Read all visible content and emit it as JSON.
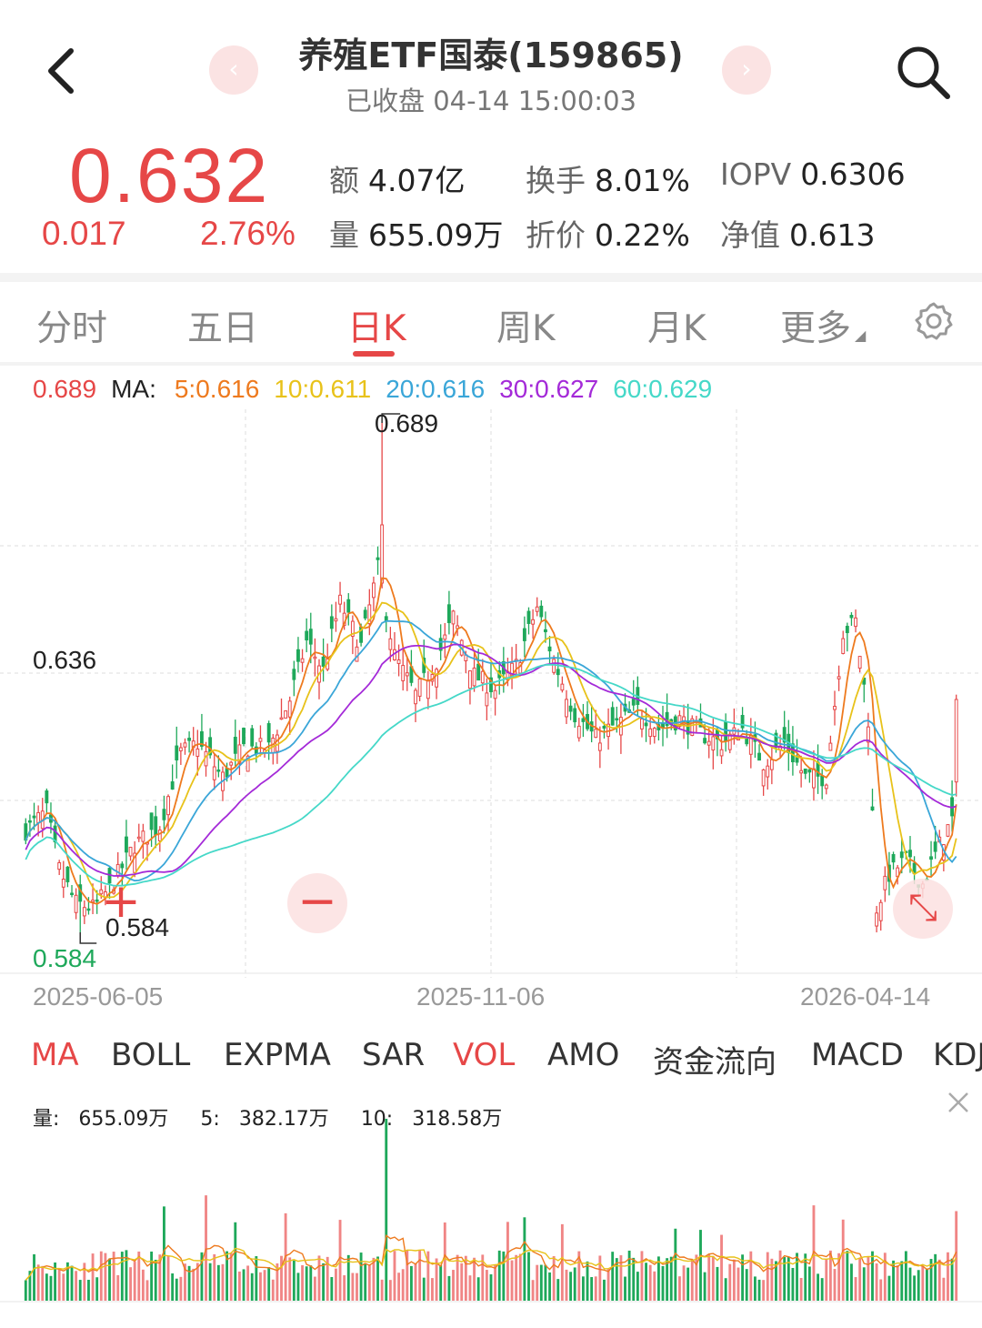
{
  "header": {
    "title": "养殖ETF国泰(159865)",
    "status": "已收盘 04-14 15:00:03",
    "prev_glyph": "‹",
    "next_glyph": "›"
  },
  "quote": {
    "price": "0.632",
    "change": "0.017",
    "change_pct": "2.76%",
    "color": "#e64747",
    "stats": [
      {
        "label": "额",
        "value": "4.07亿"
      },
      {
        "label": "换手",
        "value": "8.01%"
      },
      {
        "label": "IOPV",
        "value": "0.6306"
      },
      {
        "label": "量",
        "value": "655.09万"
      },
      {
        "label": "折价",
        "value": "0.22%"
      },
      {
        "label": "净值",
        "value": "0.613"
      }
    ]
  },
  "tabs": [
    {
      "label": "分时",
      "active": false
    },
    {
      "label": "五日",
      "active": false
    },
    {
      "label": "日K",
      "active": true
    },
    {
      "label": "周K",
      "active": false
    },
    {
      "label": "月K",
      "active": false
    },
    {
      "label": "更多",
      "active": false
    }
  ],
  "ma_legend": {
    "high": "0.689",
    "prefix": "MA:",
    "items": [
      {
        "text": "5:0.616",
        "color": "#ee7a1e"
      },
      {
        "text": "10:0.611",
        "color": "#e8c21a"
      },
      {
        "text": "20:0.616",
        "color": "#3aa6d8"
      },
      {
        "text": "30:0.627",
        "color": "#a42ad8"
      },
      {
        "text": "60:0.629",
        "color": "#45d8c8"
      }
    ]
  },
  "chart_data": {
    "type": "candlestick",
    "y_labels": {
      "high": "0.689",
      "mid": "0.636",
      "low_marker": "0.584",
      "axis_low": "0.584"
    },
    "x_labels": [
      "2025-06-05",
      "2025-11-06",
      "2026-04-14"
    ],
    "ylim": [
      0.584,
      0.689
    ],
    "up_color": "#e64747",
    "down_color": "#1ea85a",
    "close_anchors": [
      [
        0,
        0.605
      ],
      [
        5,
        0.609
      ],
      [
        8,
        0.597
      ],
      [
        12,
        0.59
      ],
      [
        16,
        0.589
      ],
      [
        20,
        0.593
      ],
      [
        26,
        0.602
      ],
      [
        32,
        0.606
      ],
      [
        37,
        0.621
      ],
      [
        41,
        0.623
      ],
      [
        47,
        0.616
      ],
      [
        52,
        0.622
      ],
      [
        58,
        0.622
      ],
      [
        63,
        0.632
      ],
      [
        67,
        0.644
      ],
      [
        71,
        0.638
      ],
      [
        75,
        0.652
      ],
      [
        80,
        0.643
      ],
      [
        84,
        0.659
      ],
      [
        88,
        0.641
      ],
      [
        93,
        0.633
      ],
      [
        98,
        0.64
      ],
      [
        102,
        0.649
      ],
      [
        107,
        0.637
      ],
      [
        112,
        0.634
      ],
      [
        117,
        0.639
      ],
      [
        122,
        0.651
      ],
      [
        126,
        0.64
      ],
      [
        131,
        0.629
      ],
      [
        136,
        0.624
      ],
      [
        141,
        0.627
      ],
      [
        146,
        0.63
      ],
      [
        151,
        0.626
      ],
      [
        156,
        0.628
      ],
      [
        161,
        0.625
      ],
      [
        166,
        0.623
      ],
      [
        171,
        0.626
      ],
      [
        176,
        0.619
      ],
      [
        181,
        0.623
      ],
      [
        186,
        0.616
      ],
      [
        191,
        0.616
      ],
      [
        195,
        0.646
      ],
      [
        198,
        0.648
      ],
      [
        201,
        0.628
      ],
      [
        203,
        0.589
      ],
      [
        206,
        0.596
      ],
      [
        210,
        0.599
      ],
      [
        214,
        0.594
      ],
      [
        218,
        0.602
      ],
      [
        222,
        0.609
      ]
    ],
    "ma_series": [
      {
        "name": "MA5",
        "color": "#ee7a1e"
      },
      {
        "name": "MA10",
        "color": "#e8c21a"
      },
      {
        "name": "MA20",
        "color": "#3aa6d8"
      },
      {
        "name": "MA30",
        "color": "#a42ad8"
      },
      {
        "name": "MA60",
        "color": "#45d8c8"
      }
    ]
  },
  "indicators": [
    {
      "label": "MA",
      "active": true
    },
    {
      "label": "BOLL",
      "active": false
    },
    {
      "label": "EXPMA",
      "active": false
    },
    {
      "label": "SAR",
      "active": false
    },
    {
      "label": "VOL",
      "active": true
    },
    {
      "label": "AMO",
      "active": false
    },
    {
      "label": "资金流向",
      "active": false
    },
    {
      "label": "MACD",
      "active": false
    },
    {
      "label": "KDJ",
      "active": false
    }
  ],
  "volume": {
    "legend": [
      {
        "label": "量:",
        "value": "655.09万"
      },
      {
        "label": "5:",
        "value": "382.17万"
      },
      {
        "label": "10:",
        "value": "318.58万"
      }
    ],
    "last_value": 655.09,
    "max_value": 1330
  },
  "controls": {
    "zoom_in": "+",
    "zoom_out": "−",
    "expand": "⤡"
  }
}
